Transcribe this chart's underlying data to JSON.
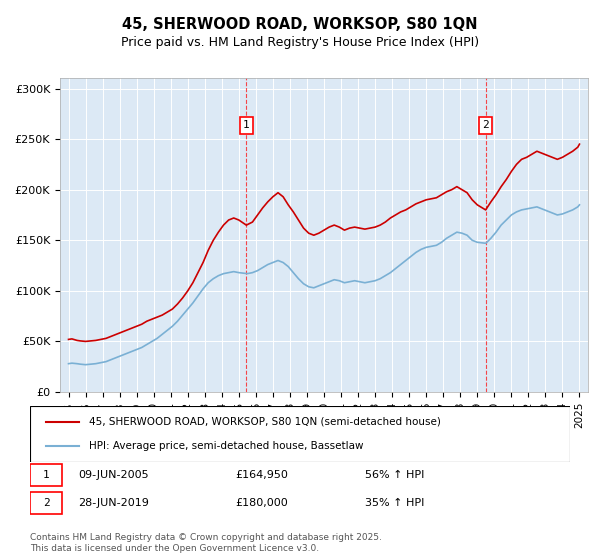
{
  "title1": "45, SHERWOOD ROAD, WORKSOP, S80 1QN",
  "title2": "Price paid vs. HM Land Registry's House Price Index (HPI)",
  "bg_color": "#dce9f5",
  "plot_bg_color": "#dce9f5",
  "red_color": "#cc0000",
  "blue_color": "#7ab0d4",
  "marker1_year": 2005.44,
  "marker2_year": 2019.49,
  "marker1_label": "1",
  "marker2_label": "2",
  "legend_line1": "45, SHERWOOD ROAD, WORKSOP, S80 1QN (semi-detached house)",
  "legend_line2": "HPI: Average price, semi-detached house, Bassetlaw",
  "annotation1": "1    09-JUN-2005    £164,950    56% ↑ HPI",
  "annotation2": "2    28-JUN-2019    £180,000    35% ↑ HPI",
  "footer": "Contains HM Land Registry data © Crown copyright and database right 2025.\nThis data is licensed under the Open Government Licence v3.0.",
  "ylim": [
    0,
    310000
  ],
  "xlim_start": 1994.5,
  "xlim_end": 2025.5,
  "yticks": [
    0,
    50000,
    100000,
    150000,
    200000,
    250000,
    300000
  ],
  "ytick_labels": [
    "£0",
    "£50K",
    "£100K",
    "£150K",
    "£200K",
    "£250K",
    "£300K"
  ],
  "xticks": [
    1995,
    1996,
    1997,
    1998,
    1999,
    2000,
    2001,
    2002,
    2003,
    2004,
    2005,
    2006,
    2007,
    2008,
    2009,
    2010,
    2011,
    2012,
    2013,
    2014,
    2015,
    2016,
    2017,
    2018,
    2019,
    2020,
    2021,
    2022,
    2023,
    2024,
    2025
  ],
  "red_x": [
    1995.0,
    1995.2,
    1995.5,
    1995.7,
    1996.0,
    1996.3,
    1996.6,
    1996.9,
    1997.2,
    1997.5,
    1997.8,
    1998.1,
    1998.4,
    1998.7,
    1999.0,
    1999.3,
    1999.6,
    1999.9,
    2000.2,
    2000.5,
    2000.8,
    2001.1,
    2001.4,
    2001.7,
    2002.0,
    2002.3,
    2002.6,
    2002.9,
    2003.2,
    2003.5,
    2003.8,
    2004.1,
    2004.4,
    2004.7,
    2005.0,
    2005.44,
    2005.8,
    2006.1,
    2006.4,
    2006.7,
    2007.0,
    2007.3,
    2007.6,
    2007.9,
    2008.2,
    2008.5,
    2008.8,
    2009.1,
    2009.4,
    2009.7,
    2010.0,
    2010.3,
    2010.6,
    2010.9,
    2011.2,
    2011.5,
    2011.8,
    2012.1,
    2012.4,
    2012.7,
    2013.0,
    2013.3,
    2013.6,
    2013.9,
    2014.2,
    2014.5,
    2014.8,
    2015.1,
    2015.4,
    2015.7,
    2016.0,
    2016.3,
    2016.6,
    2016.9,
    2017.2,
    2017.5,
    2017.8,
    2018.1,
    2018.4,
    2018.7,
    2019.0,
    2019.49,
    2019.8,
    2020.1,
    2020.4,
    2020.7,
    2021.0,
    2021.3,
    2021.6,
    2021.9,
    2022.2,
    2022.5,
    2022.8,
    2023.1,
    2023.4,
    2023.7,
    2024.0,
    2024.3,
    2024.6,
    2024.9,
    2025.0
  ],
  "red_y": [
    52000,
    52500,
    51000,
    50500,
    50000,
    50500,
    51000,
    52000,
    53000,
    55000,
    57000,
    59000,
    61000,
    63000,
    65000,
    67000,
    70000,
    72000,
    74000,
    76000,
    79000,
    82000,
    87000,
    93000,
    100000,
    108000,
    118000,
    128000,
    140000,
    150000,
    158000,
    165000,
    170000,
    172000,
    170000,
    164950,
    168000,
    175000,
    182000,
    188000,
    193000,
    197000,
    193000,
    185000,
    178000,
    170000,
    162000,
    157000,
    155000,
    157000,
    160000,
    163000,
    165000,
    163000,
    160000,
    162000,
    163000,
    162000,
    161000,
    162000,
    163000,
    165000,
    168000,
    172000,
    175000,
    178000,
    180000,
    183000,
    186000,
    188000,
    190000,
    191000,
    192000,
    195000,
    198000,
    200000,
    203000,
    200000,
    197000,
    190000,
    185000,
    180000,
    188000,
    195000,
    203000,
    210000,
    218000,
    225000,
    230000,
    232000,
    235000,
    238000,
    236000,
    234000,
    232000,
    230000,
    232000,
    235000,
    238000,
    242000,
    245000
  ],
  "blue_x": [
    1995.0,
    1995.2,
    1995.5,
    1995.7,
    1996.0,
    1996.3,
    1996.6,
    1996.9,
    1997.2,
    1997.5,
    1997.8,
    1998.1,
    1998.4,
    1998.7,
    1999.0,
    1999.3,
    1999.6,
    1999.9,
    2000.2,
    2000.5,
    2000.8,
    2001.1,
    2001.4,
    2001.7,
    2002.0,
    2002.3,
    2002.6,
    2002.9,
    2003.2,
    2003.5,
    2003.8,
    2004.1,
    2004.4,
    2004.7,
    2005.0,
    2005.5,
    2005.8,
    2006.1,
    2006.4,
    2006.7,
    2007.0,
    2007.3,
    2007.6,
    2007.9,
    2008.2,
    2008.5,
    2008.8,
    2009.1,
    2009.4,
    2009.7,
    2010.0,
    2010.3,
    2010.6,
    2010.9,
    2011.2,
    2011.5,
    2011.8,
    2012.1,
    2012.4,
    2012.7,
    2013.0,
    2013.3,
    2013.6,
    2013.9,
    2014.2,
    2014.5,
    2014.8,
    2015.1,
    2015.4,
    2015.7,
    2016.0,
    2016.3,
    2016.6,
    2016.9,
    2017.2,
    2017.5,
    2017.8,
    2018.1,
    2018.4,
    2018.7,
    2019.0,
    2019.5,
    2019.8,
    2020.1,
    2020.4,
    2020.7,
    2021.0,
    2021.3,
    2021.6,
    2021.9,
    2022.2,
    2022.5,
    2022.8,
    2023.1,
    2023.4,
    2023.7,
    2024.0,
    2024.3,
    2024.6,
    2024.9,
    2025.0
  ],
  "blue_y": [
    28000,
    28500,
    28000,
    27500,
    27000,
    27500,
    28000,
    29000,
    30000,
    32000,
    34000,
    36000,
    38000,
    40000,
    42000,
    44000,
    47000,
    50000,
    53000,
    57000,
    61000,
    65000,
    70000,
    76000,
    82000,
    88000,
    95000,
    102000,
    108000,
    112000,
    115000,
    117000,
    118000,
    119000,
    118000,
    117000,
    118000,
    120000,
    123000,
    126000,
    128000,
    130000,
    128000,
    124000,
    118000,
    112000,
    107000,
    104000,
    103000,
    105000,
    107000,
    109000,
    111000,
    110000,
    108000,
    109000,
    110000,
    109000,
    108000,
    109000,
    110000,
    112000,
    115000,
    118000,
    122000,
    126000,
    130000,
    134000,
    138000,
    141000,
    143000,
    144000,
    145000,
    148000,
    152000,
    155000,
    158000,
    157000,
    155000,
    150000,
    148000,
    147000,
    152000,
    158000,
    165000,
    170000,
    175000,
    178000,
    180000,
    181000,
    182000,
    183000,
    181000,
    179000,
    177000,
    175000,
    176000,
    178000,
    180000,
    183000,
    185000
  ]
}
